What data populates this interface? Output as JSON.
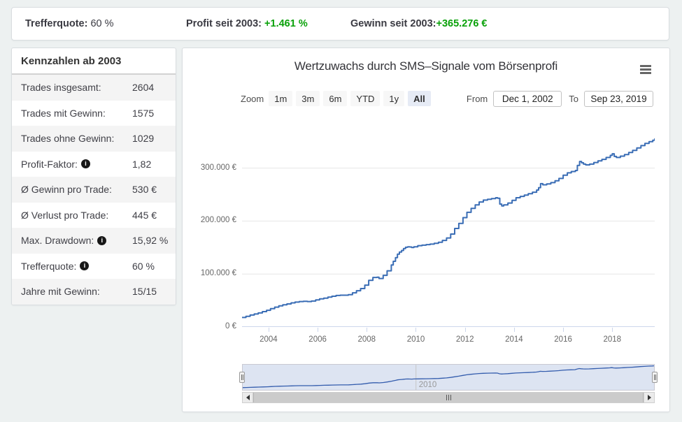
{
  "topbar": {
    "stats": [
      {
        "label": "Trefferquote:",
        "value": "60 %",
        "highlight": false
      },
      {
        "label": "Profit seit 2003:",
        "value": "+1.461 %",
        "highlight": true
      },
      {
        "label": "Gewinn seit 2003:",
        "value": "+365.276 €",
        "highlight": true
      }
    ]
  },
  "sidebar": {
    "title": "Kennzahlen ab 2003",
    "rows": [
      {
        "label": "Trades insgesamt:",
        "value": "2604",
        "info": false
      },
      {
        "label": "Trades mit Gewinn:",
        "value": "1575",
        "info": false
      },
      {
        "label": "Trades ohne Gewinn:",
        "value": "1029",
        "info": false
      },
      {
        "label": "Profit-Faktor:",
        "value": "1,82",
        "info": true
      },
      {
        "label": "Ø Gewinn pro Trade:",
        "value": "530 €",
        "info": false
      },
      {
        "label": "Ø Verlust pro Trade:",
        "value": "445 €",
        "info": false
      },
      {
        "label": "Max. Drawdown:",
        "value": "15,92 %",
        "info": true
      },
      {
        "label": "Trefferquote:",
        "value": "60 %",
        "info": true
      },
      {
        "label": "Jahre mit Gewinn:",
        "value": "15/15",
        "info": false
      }
    ]
  },
  "chart": {
    "title": "Wertzuwachs durch SMS–Signale vom Börsenprofi",
    "range_selector": {
      "zoom_label": "Zoom",
      "buttons": [
        "1m",
        "3m",
        "6m",
        "YTD",
        "1y",
        "All"
      ],
      "selected": "All",
      "from_label": "From",
      "from_value": "Dec 1, 2002",
      "to_label": "To",
      "to_value": "Sep 23, 2019"
    }
  },
  "colors": {
    "series_line": "#3a6db5",
    "navigator_line": "#335cad",
    "navigator_mask": "rgba(102,133,194,0.22)",
    "grid": "#e6e6e6",
    "axis": "#ccd6eb",
    "positive_green": "#09a109"
  },
  "chart_data": {
    "type": "line",
    "title": "Wertzuwachs durch SMS–Signale vom Börsenprofi",
    "xlabel": "",
    "ylabel": "",
    "x_unit": "decimal year",
    "y_unit": "EUR",
    "xlim": [
      2002.92,
      2019.73
    ],
    "ylim": [
      0,
      372000
    ],
    "grid": true,
    "legend": "none",
    "yticks": [
      {
        "value": 0,
        "label": "0 €"
      },
      {
        "value": 100000,
        "label": "100.000 €"
      },
      {
        "value": 200000,
        "label": "200.000 €"
      },
      {
        "value": 300000,
        "label": "300.000 €"
      }
    ],
    "xticks": [
      2004,
      2006,
      2008,
      2010,
      2012,
      2014,
      2016,
      2018
    ],
    "navigator": {
      "visible": true,
      "tick_year": 2010,
      "tick_label": "2010",
      "range_selected": "full"
    },
    "series": [
      {
        "name": "Wertzuwachs",
        "color": "#3a6db5",
        "points": [
          [
            2002.92,
            18000
          ],
          [
            2003.08,
            20000
          ],
          [
            2003.25,
            22500
          ],
          [
            2003.42,
            24500
          ],
          [
            2003.58,
            26500
          ],
          [
            2003.75,
            29000
          ],
          [
            2003.92,
            31500
          ],
          [
            2004.08,
            34500
          ],
          [
            2004.25,
            37500
          ],
          [
            2004.42,
            40000
          ],
          [
            2004.58,
            42000
          ],
          [
            2004.75,
            43500
          ],
          [
            2004.92,
            45500
          ],
          [
            2005.08,
            47000
          ],
          [
            2005.25,
            48000
          ],
          [
            2005.42,
            48500
          ],
          [
            2005.58,
            48000
          ],
          [
            2005.75,
            49000
          ],
          [
            2005.92,
            51000
          ],
          [
            2006.08,
            53000
          ],
          [
            2006.25,
            54500
          ],
          [
            2006.42,
            56500
          ],
          [
            2006.58,
            58000
          ],
          [
            2006.75,
            59500
          ],
          [
            2006.92,
            60000
          ],
          [
            2007.08,
            60000
          ],
          [
            2007.25,
            61000
          ],
          [
            2007.42,
            64500
          ],
          [
            2007.58,
            68500
          ],
          [
            2007.75,
            72500
          ],
          [
            2007.92,
            79000
          ],
          [
            2008.08,
            88000
          ],
          [
            2008.25,
            93500
          ],
          [
            2008.42,
            94000
          ],
          [
            2008.5,
            91500
          ],
          [
            2008.67,
            97500
          ],
          [
            2008.83,
            106000
          ],
          [
            2009.0,
            117000
          ],
          [
            2009.08,
            124000
          ],
          [
            2009.17,
            131000
          ],
          [
            2009.25,
            137500
          ],
          [
            2009.33,
            141500
          ],
          [
            2009.42,
            144500
          ],
          [
            2009.5,
            148000
          ],
          [
            2009.58,
            150500
          ],
          [
            2009.67,
            151500
          ],
          [
            2009.75,
            151000
          ],
          [
            2009.83,
            150000
          ],
          [
            2009.92,
            151500
          ],
          [
            2010.08,
            153500
          ],
          [
            2010.25,
            154500
          ],
          [
            2010.42,
            155500
          ],
          [
            2010.58,
            156500
          ],
          [
            2010.75,
            158000
          ],
          [
            2010.92,
            160000
          ],
          [
            2011.08,
            163500
          ],
          [
            2011.25,
            168000
          ],
          [
            2011.42,
            175500
          ],
          [
            2011.58,
            186000
          ],
          [
            2011.75,
            195500
          ],
          [
            2011.92,
            206500
          ],
          [
            2012.08,
            216500
          ],
          [
            2012.25,
            224000
          ],
          [
            2012.42,
            230500
          ],
          [
            2012.58,
            236000
          ],
          [
            2012.75,
            239500
          ],
          [
            2012.92,
            241000
          ],
          [
            2013.08,
            242500
          ],
          [
            2013.25,
            244000
          ],
          [
            2013.33,
            243000
          ],
          [
            2013.42,
            232000
          ],
          [
            2013.5,
            228500
          ],
          [
            2013.58,
            230500
          ],
          [
            2013.75,
            234000
          ],
          [
            2013.92,
            239000
          ],
          [
            2014.08,
            244000
          ],
          [
            2014.25,
            246500
          ],
          [
            2014.42,
            249000
          ],
          [
            2014.58,
            251500
          ],
          [
            2014.75,
            254500
          ],
          [
            2014.92,
            258500
          ],
          [
            2015.0,
            263000
          ],
          [
            2015.08,
            270500
          ],
          [
            2015.17,
            268500
          ],
          [
            2015.33,
            270000
          ],
          [
            2015.5,
            272500
          ],
          [
            2015.67,
            276000
          ],
          [
            2015.83,
            280500
          ],
          [
            2016.0,
            286500
          ],
          [
            2016.17,
            291000
          ],
          [
            2016.33,
            293500
          ],
          [
            2016.5,
            295500
          ],
          [
            2016.58,
            305000
          ],
          [
            2016.67,
            312500
          ],
          [
            2016.75,
            310000
          ],
          [
            2016.83,
            307500
          ],
          [
            2016.92,
            306000
          ],
          [
            2017.08,
            307500
          ],
          [
            2017.25,
            310500
          ],
          [
            2017.42,
            313500
          ],
          [
            2017.58,
            316500
          ],
          [
            2017.75,
            320000
          ],
          [
            2017.92,
            324000
          ],
          [
            2018.0,
            327000
          ],
          [
            2018.08,
            322000
          ],
          [
            2018.17,
            320000
          ],
          [
            2018.33,
            322500
          ],
          [
            2018.5,
            325500
          ],
          [
            2018.67,
            329500
          ],
          [
            2018.83,
            333500
          ],
          [
            2019.0,
            338000
          ],
          [
            2019.17,
            342500
          ],
          [
            2019.33,
            346500
          ],
          [
            2019.5,
            350000
          ],
          [
            2019.65,
            352500
          ],
          [
            2019.73,
            355000
          ]
        ]
      }
    ]
  }
}
